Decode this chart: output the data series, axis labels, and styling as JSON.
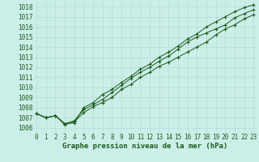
{
  "xlabel": "Graphe pression niveau de la mer (hPa)",
  "xlim": [
    -0.3,
    23.3
  ],
  "ylim": [
    1005.5,
    1018.5
  ],
  "yticks": [
    1006,
    1007,
    1008,
    1009,
    1010,
    1011,
    1012,
    1013,
    1014,
    1015,
    1016,
    1017,
    1018
  ],
  "xticks": [
    0,
    1,
    2,
    3,
    4,
    5,
    6,
    7,
    8,
    9,
    10,
    11,
    12,
    13,
    14,
    15,
    16,
    17,
    18,
    19,
    20,
    21,
    22,
    23
  ],
  "background_color": "#cceee8",
  "grid_color": "#b0d8d0",
  "line_color": "#1a5c1a",
  "line1": [
    1007.4,
    1007.0,
    1007.2,
    1006.3,
    1006.6,
    1007.5,
    1008.1,
    1008.5,
    1009.0,
    1009.8,
    1010.3,
    1011.0,
    1011.5,
    1012.1,
    1012.5,
    1013.0,
    1013.5,
    1014.0,
    1014.5,
    1015.2,
    1015.8,
    1016.2,
    1016.8,
    1017.2
  ],
  "line2": [
    1007.4,
    1007.0,
    1007.2,
    1006.4,
    1006.7,
    1007.8,
    1008.3,
    1008.8,
    1009.5,
    1010.2,
    1010.9,
    1011.5,
    1012.0,
    1012.6,
    1013.1,
    1013.8,
    1014.5,
    1015.0,
    1015.4,
    1015.8,
    1016.2,
    1016.9,
    1017.3,
    1017.7
  ],
  "line3": [
    1007.4,
    1007.0,
    1007.2,
    1006.4,
    1006.5,
    1008.0,
    1008.5,
    1009.3,
    1009.8,
    1010.5,
    1011.1,
    1011.8,
    1012.3,
    1013.0,
    1013.5,
    1014.1,
    1014.8,
    1015.3,
    1016.0,
    1016.5,
    1017.0,
    1017.5,
    1017.9,
    1018.2
  ],
  "tick_fontsize": 5.5,
  "label_fontsize": 6.5,
  "fig_width": 3.2,
  "fig_height": 2.0,
  "dpi": 100
}
